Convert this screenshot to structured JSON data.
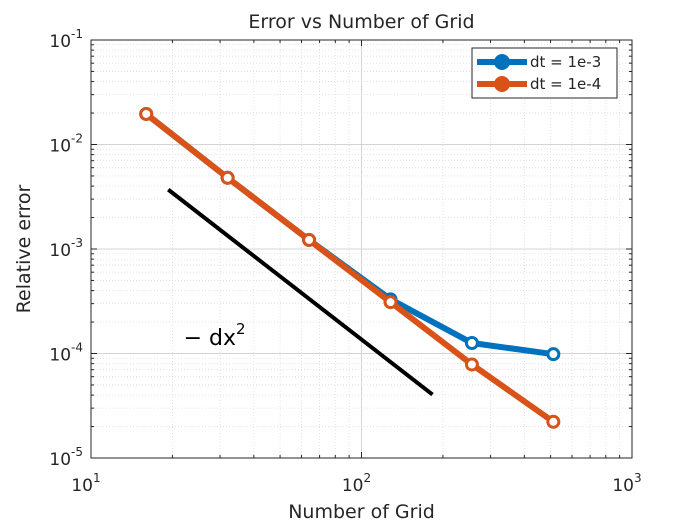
{
  "chart_data": {
    "type": "line",
    "title": "Error vs Number of Grid",
    "xlabel": "Number of Grid",
    "ylabel": "Relative error",
    "xscale": "log",
    "yscale": "log",
    "xlim": [
      10,
      1000
    ],
    "ylim": [
      1e-05,
      0.1
    ],
    "x_ticks": [
      {
        "base": "10",
        "exp": "1",
        "value": 10
      },
      {
        "base": "10",
        "exp": "2",
        "value": 100
      },
      {
        "base": "10",
        "exp": "3",
        "value": 1000
      }
    ],
    "y_ticks": [
      {
        "base": "10",
        "exp": "-5",
        "value": 1e-05
      },
      {
        "base": "10",
        "exp": "-4",
        "value": 0.0001
      },
      {
        "base": "10",
        "exp": "-3",
        "value": 0.001
      },
      {
        "base": "10",
        "exp": "-2",
        "value": 0.01
      },
      {
        "base": "10",
        "exp": "-1",
        "value": 0.1
      }
    ],
    "grid": true,
    "minor_grid": true,
    "legend_position": "top-right",
    "series": [
      {
        "name": "dt = 1e-3",
        "color": "#0072BD",
        "x": [
          16,
          32,
          64,
          128,
          256,
          512
        ],
        "y": [
          0.0196,
          0.0048,
          0.00122,
          0.00033,
          0.000126,
          9.85e-05
        ]
      },
      {
        "name": "dt = 1e-4",
        "color": "#D95319",
        "x": [
          16,
          32,
          64,
          128,
          256,
          512
        ],
        "y": [
          0.0196,
          0.0048,
          0.00122,
          0.00031,
          7.85e-05,
          2.22e-05
        ]
      }
    ],
    "reference_line": {
      "color": "#000000",
      "x": [
        19.3,
        183
      ],
      "y": [
        0.0037,
        4.05e-05
      ]
    },
    "annotation": {
      "text": "− dx",
      "exp": "2",
      "x": 22,
      "y": 0.00012
    }
  }
}
